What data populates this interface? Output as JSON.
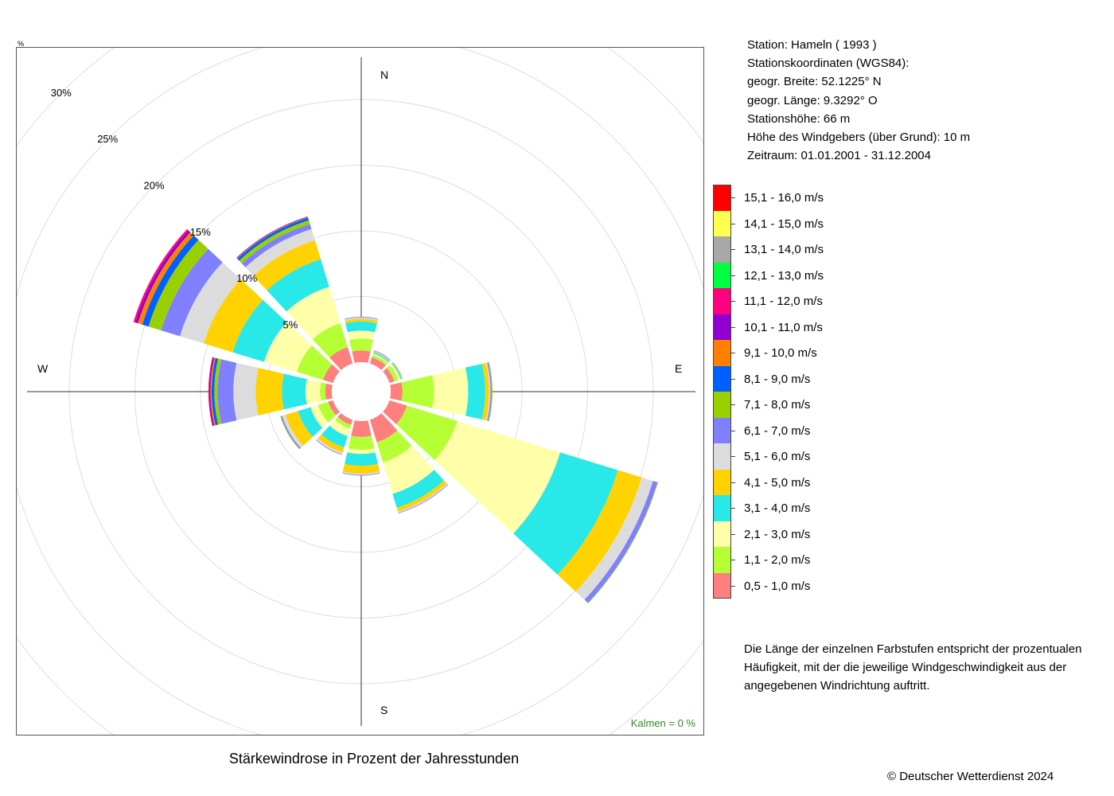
{
  "station": {
    "name_line": "Station:  Hameln  ( 1993 )",
    "coords_title": "Stationskoordinaten (WGS84):",
    "latitude": "geogr. Breite: 52.1225° N",
    "longitude": "geogr. Länge:   9.3292° O",
    "elevation": "Stationshöhe: 66 m",
    "sensor_height": "Höhe des Windgebers (über Grund): 10 m",
    "period": "Zeitraum: 01.01.2001 - 31.12.2004"
  },
  "note": "Die Länge der einzelnen Farbstufen entspricht der prozentualen Häufigkeit, mit der die jeweilige Windgeschwindigkeit aus der angegebenen Windrichtung auftritt.",
  "copyright": "© Deutscher Wetterdienst  2024",
  "pct_mark": "%",
  "chart_data": {
    "type": "wind-rose",
    "title": "Stärkewindrose in Prozent der Jahresstunden",
    "calm_label": "Kalmen  =  0 %",
    "direction_labels": {
      "N": "N",
      "E": "E",
      "S": "S",
      "W": "W"
    },
    "ring_labels": [
      "5%",
      "10%",
      "15%",
      "20%",
      "25%",
      "30%"
    ],
    "ring_values": [
      5,
      10,
      15,
      20,
      25,
      30
    ],
    "directions_deg": [
      0,
      30,
      60,
      90,
      120,
      150,
      180,
      210,
      240,
      270,
      300,
      330
    ],
    "speed_classes": [
      {
        "label": "0,5 - 1,0 m/s",
        "color": "#FF7F7F"
      },
      {
        "label": "1,1 - 2,0 m/s",
        "color": "#B5FF35"
      },
      {
        "label": "2,1 - 3,0 m/s",
        "color": "#FFFFAA"
      },
      {
        "label": "3,1 - 4,0 m/s",
        "color": "#29E8E8"
      },
      {
        "label": "4,1 - 5,0 m/s",
        "color": "#FFD200"
      },
      {
        "label": "5,1 - 6,0 m/s",
        "color": "#DCDCDC"
      },
      {
        "label": "6,1 - 7,0 m/s",
        "color": "#8080FF"
      },
      {
        "label": "7,1 - 8,0 m/s",
        "color": "#99D100"
      },
      {
        "label": "8,1 - 9,0 m/s",
        "color": "#0060FF"
      },
      {
        "label": "9,1 - 10,0 m/s",
        "color": "#FF8000"
      },
      {
        "label": "10,1 - 11,0 m/s",
        "color": "#9000D0"
      },
      {
        "label": "11,1 - 12,0 m/s",
        "color": "#FF0080"
      },
      {
        "label": "12,1 - 13,0 m/s",
        "color": "#00FF40"
      },
      {
        "label": "13,1 - 14,0 m/s",
        "color": "#A8A8A8"
      },
      {
        "label": "14,1 - 15,0 m/s",
        "color": "#FFFF50"
      },
      {
        "label": "15,1 - 16,0 m/s",
        "color": "#FF0000"
      }
    ],
    "frequencies_pct": [
      [
        0.9,
        0.9,
        0.6,
        0.7,
        0.2,
        0.1,
        0.05
      ],
      [
        0.5,
        0.2,
        0.1,
        0.1,
        0.05,
        0.05,
        0.05
      ],
      [
        0.4,
        0.3,
        0.2,
        0.1,
        0.05,
        0.05
      ],
      [
        0.9,
        2.4,
        2.6,
        1.3,
        0.3,
        0.1,
        0.1,
        0.05
      ],
      [
        1.4,
        4.0,
        8.2,
        4.6,
        1.9,
        0.9,
        0.35,
        0.05
      ],
      [
        1.8,
        1.6,
        2.5,
        1.1,
        0.3,
        0.1,
        0.05
      ],
      [
        1.2,
        1.0,
        0.3,
        0.9,
        0.6,
        0.1,
        0.05
      ],
      [
        0.4,
        0.3,
        0.6,
        0.9,
        0.4,
        0.15,
        0.05
      ],
      [
        0.4,
        0.8,
        0.6,
        1.0,
        1.0,
        0.25,
        0.1,
        0.05
      ],
      [
        0.5,
        0.4,
        1.1,
        1.8,
        2.0,
        1.7,
        1.2,
        0.25,
        0.2,
        0.1,
        0.1,
        0.05
      ],
      [
        0.8,
        2.1,
        2.6,
        2.5,
        2.3,
        1.9,
        1.5,
        1.0,
        0.5,
        0.35,
        0.2,
        0.15
      ],
      [
        1.3,
        1.9,
        2.9,
        2.2,
        1.5,
        0.9,
        0.4,
        0.3,
        0.2,
        0.05,
        0.05
      ]
    ]
  }
}
